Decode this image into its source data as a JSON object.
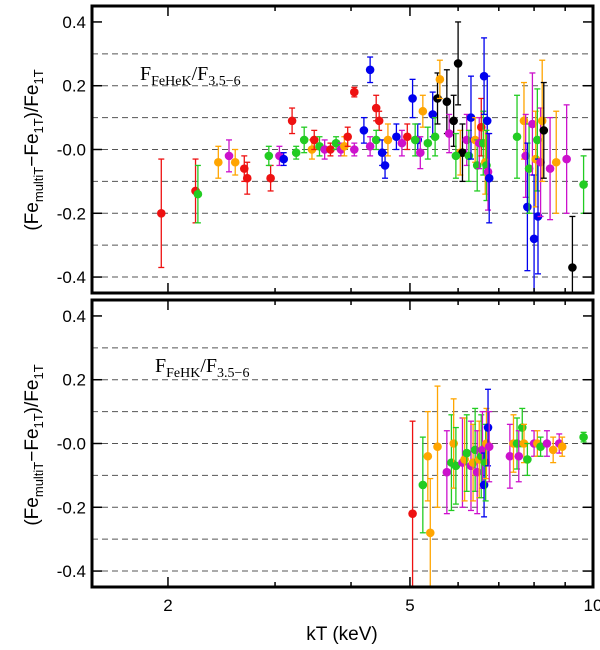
{
  "chart_data": {
    "type": "scatter",
    "xlabel": "kT (keV)",
    "xscale": "log",
    "xlim": [
      1.5,
      10
    ],
    "x_ticks": [
      2,
      5,
      10
    ],
    "x_tick_labels": [
      "2",
      "5",
      "10"
    ],
    "shared_ylabel": {
      "main": "(Fe",
      "sub1": "multiT",
      "mid": "−Fe",
      "sub2": "1T",
      "end": ")/Fe",
      "sub3": "1T"
    },
    "y_ticks": [
      0.4,
      0.2,
      -0.0,
      -0.2,
      -0.4
    ],
    "y_tick_labels": [
      "0.4",
      "0.2",
      "-0.0",
      "-0.2",
      "-0.4"
    ],
    "dashed_grid_y": [
      0.3,
      0.2,
      0.1,
      0.0,
      -0.1,
      -0.2,
      -0.3,
      -0.4
    ],
    "series_colors": {
      "red": "#ee1111",
      "orange": "#ffa500",
      "green": "#22cc22",
      "blue": "#0000ee",
      "magenta": "#cc11cc",
      "black": "#000000"
    },
    "panels": [
      {
        "id": "top",
        "ylim": [
          -0.45,
          0.45
        ],
        "annotation": {
          "main": "F",
          "sub1": "FeHeK",
          "mid": "/F",
          "sub2": "3.5−6"
        },
        "points": [
          {
            "c": "red",
            "x": 1.95,
            "y": -0.2,
            "e": 0.17
          },
          {
            "c": "red",
            "x": 2.22,
            "y": -0.13,
            "e": 0.1
          },
          {
            "c": "green",
            "x": 2.24,
            "y": -0.14,
            "e": 0.09
          },
          {
            "c": "orange",
            "x": 2.42,
            "y": -0.04,
            "e": 0.05
          },
          {
            "c": "magenta",
            "x": 2.52,
            "y": -0.02,
            "e": 0.05
          },
          {
            "c": "orange",
            "x": 2.58,
            "y": -0.04,
            "e": 0.04
          },
          {
            "c": "red",
            "x": 2.67,
            "y": -0.06,
            "e": 0.04
          },
          {
            "c": "red",
            "x": 2.7,
            "y": -0.09,
            "e": 0.05
          },
          {
            "c": "red",
            "x": 2.95,
            "y": -0.09,
            "e": 0.04
          },
          {
            "c": "green",
            "x": 2.93,
            "y": -0.02,
            "e": 0.03
          },
          {
            "c": "magenta",
            "x": 3.05,
            "y": -0.02,
            "e": 0.03
          },
          {
            "c": "blue",
            "x": 3.1,
            "y": -0.03,
            "e": 0.02
          },
          {
            "c": "red",
            "x": 3.2,
            "y": 0.09,
            "e": 0.04
          },
          {
            "c": "green",
            "x": 3.25,
            "y": -0.01,
            "e": 0.02
          },
          {
            "c": "green",
            "x": 3.35,
            "y": 0.03,
            "e": 0.04
          },
          {
            "c": "orange",
            "x": 3.45,
            "y": 0.0,
            "e": 0.03
          },
          {
            "c": "red",
            "x": 3.48,
            "y": 0.03,
            "e": 0.03
          },
          {
            "c": "green",
            "x": 3.55,
            "y": 0.01,
            "e": 0.03
          },
          {
            "c": "magenta",
            "x": 3.62,
            "y": 0.0,
            "e": 0.03
          },
          {
            "c": "red",
            "x": 3.7,
            "y": 0.0,
            "e": 0.02
          },
          {
            "c": "green",
            "x": 3.78,
            "y": 0.02,
            "e": 0.02
          },
          {
            "c": "magenta",
            "x": 3.85,
            "y": 0.0,
            "e": 0.02
          },
          {
            "c": "orange",
            "x": 3.9,
            "y": 0.01,
            "e": 0.03
          },
          {
            "c": "red",
            "x": 3.95,
            "y": 0.04,
            "e": 0.03
          },
          {
            "c": "magenta",
            "x": 4.05,
            "y": 0.0,
            "e": 0.02
          },
          {
            "c": "red",
            "x": 4.05,
            "y": 0.18,
            "e": 0.015
          },
          {
            "c": "blue",
            "x": 4.2,
            "y": 0.06,
            "e": 0.04
          },
          {
            "c": "blue",
            "x": 4.3,
            "y": 0.25,
            "e": 0.04
          },
          {
            "c": "magenta",
            "x": 4.3,
            "y": 0.01,
            "e": 0.03
          },
          {
            "c": "red",
            "x": 4.4,
            "y": 0.13,
            "e": 0.04
          },
          {
            "c": "red",
            "x": 4.45,
            "y": 0.09,
            "e": 0.03
          },
          {
            "c": "green",
            "x": 4.4,
            "y": 0.03,
            "e": 0.03
          },
          {
            "c": "blue",
            "x": 4.5,
            "y": -0.01,
            "e": 0.04
          },
          {
            "c": "blue",
            "x": 4.55,
            "y": -0.05,
            "e": 0.04
          },
          {
            "c": "orange",
            "x": 4.6,
            "y": 0.03,
            "e": 0.05
          },
          {
            "c": "blue",
            "x": 4.75,
            "y": 0.04,
            "e": 0.04
          },
          {
            "c": "magenta",
            "x": 4.85,
            "y": 0.02,
            "e": 0.04
          },
          {
            "c": "red",
            "x": 4.95,
            "y": 0.04,
            "e": 0.04
          },
          {
            "c": "blue",
            "x": 5.05,
            "y": 0.16,
            "e": 0.06
          },
          {
            "c": "blue",
            "x": 5.15,
            "y": 0.03,
            "e": 0.05
          },
          {
            "c": "green",
            "x": 5.1,
            "y": 0.03,
            "e": 0.05
          },
          {
            "c": "magenta",
            "x": 5.2,
            "y": -0.01,
            "e": 0.05
          },
          {
            "c": "orange",
            "x": 5.25,
            "y": 0.12,
            "e": 0.05
          },
          {
            "c": "green",
            "x": 5.35,
            "y": 0.02,
            "e": 0.05
          },
          {
            "c": "blue",
            "x": 5.45,
            "y": 0.11,
            "e": 0.07
          },
          {
            "c": "green",
            "x": 5.5,
            "y": 0.04,
            "e": 0.06
          },
          {
            "c": "black",
            "x": 5.55,
            "y": 0.16,
            "e": 0.08
          },
          {
            "c": "orange",
            "x": 5.6,
            "y": 0.22,
            "e": 0.06
          },
          {
            "c": "black",
            "x": 5.75,
            "y": 0.15,
            "e": 0.1
          },
          {
            "c": "magenta",
            "x": 5.8,
            "y": 0.05,
            "e": 0.06
          },
          {
            "c": "black",
            "x": 5.9,
            "y": 0.09,
            "e": 0.08
          },
          {
            "c": "black",
            "x": 6.0,
            "y": 0.27,
            "e": 0.13
          },
          {
            "c": "orange",
            "x": 6.05,
            "y": -0.01,
            "e": 0.07
          },
          {
            "c": "black",
            "x": 6.1,
            "y": -0.01,
            "e": 0.09
          },
          {
            "c": "green",
            "x": 5.95,
            "y": -0.02,
            "e": 0.07
          },
          {
            "c": "magenta",
            "x": 6.2,
            "y": 0.03,
            "e": 0.08
          },
          {
            "c": "green",
            "x": 6.25,
            "y": -0.02,
            "e": 0.08
          },
          {
            "c": "blue",
            "x": 6.3,
            "y": 0.1,
            "e": 0.13
          },
          {
            "c": "orange",
            "x": 6.4,
            "y": 0.03,
            "e": 0.07
          },
          {
            "c": "green",
            "x": 6.45,
            "y": -0.05,
            "e": 0.08
          },
          {
            "c": "magenta",
            "x": 6.5,
            "y": 0.02,
            "e": 0.08
          },
          {
            "c": "red",
            "x": 6.55,
            "y": 0.07,
            "e": 0.09
          },
          {
            "c": "green",
            "x": 6.6,
            "y": 0.02,
            "e": 0.1
          },
          {
            "c": "blue",
            "x": 6.62,
            "y": 0.23,
            "e": 0.12
          },
          {
            "c": "blue",
            "x": 6.7,
            "y": 0.09,
            "e": 0.14
          },
          {
            "c": "orange",
            "x": 6.65,
            "y": -0.04,
            "e": 0.1
          },
          {
            "c": "green",
            "x": 6.68,
            "y": -0.05,
            "e": 0.11
          },
          {
            "c": "magenta",
            "x": 6.72,
            "y": -0.07,
            "e": 0.12
          },
          {
            "c": "blue",
            "x": 6.75,
            "y": -0.09,
            "e": 0.14
          },
          {
            "c": "green",
            "x": 7.5,
            "y": 0.04,
            "e": 0.13
          },
          {
            "c": "orange",
            "x": 7.7,
            "y": 0.09,
            "e": 0.12
          },
          {
            "c": "magenta",
            "x": 7.75,
            "y": -0.02,
            "e": 0.13
          },
          {
            "c": "blue",
            "x": 7.8,
            "y": -0.18,
            "e": 0.2
          },
          {
            "c": "green",
            "x": 7.85,
            "y": -0.06,
            "e": 0.14
          },
          {
            "c": "magenta",
            "x": 7.95,
            "y": 0.08,
            "e": 0.16
          },
          {
            "c": "blue",
            "x": 8.0,
            "y": -0.28,
            "e": 0.2
          },
          {
            "c": "orange",
            "x": 8.05,
            "y": -0.03,
            "e": 0.15
          },
          {
            "c": "green",
            "x": 8.1,
            "y": 0.03,
            "e": 0.16
          },
          {
            "c": "blue",
            "x": 8.12,
            "y": -0.21,
            "e": 0.18
          },
          {
            "c": "magenta",
            "x": 8.2,
            "y": -0.04,
            "e": 0.17
          },
          {
            "c": "orange",
            "x": 8.25,
            "y": 0.09,
            "e": 0.19
          },
          {
            "c": "black",
            "x": 8.3,
            "y": 0.06,
            "e": 0.15
          },
          {
            "c": "magenta",
            "x": 8.5,
            "y": -0.06,
            "e": 0.16
          },
          {
            "c": "orange",
            "x": 8.7,
            "y": -0.04,
            "e": 0.16
          },
          {
            "c": "magenta",
            "x": 9.05,
            "y": -0.03,
            "e": 0.17
          },
          {
            "c": "black",
            "x": 9.25,
            "y": -0.37,
            "e": 0.16
          },
          {
            "c": "green",
            "x": 9.65,
            "y": -0.11,
            "e": 0.09
          }
        ]
      },
      {
        "id": "bottom",
        "ylim": [
          -0.45,
          0.45
        ],
        "annotation": {
          "main": "F",
          "sub1": "FeHK",
          "mid": "/F",
          "sub2": "3.5−6"
        },
        "points": [
          {
            "c": "red",
            "x": 5.05,
            "y": -0.22,
            "e": 0.29
          },
          {
            "c": "green",
            "x": 5.25,
            "y": -0.13,
            "e": 0.15
          },
          {
            "c": "orange",
            "x": 5.35,
            "y": -0.04,
            "e": 0.14
          },
          {
            "c": "orange",
            "x": 5.4,
            "y": -0.28,
            "e": 0.17
          },
          {
            "c": "orange",
            "x": 5.55,
            "y": -0.01,
            "e": 0.19
          },
          {
            "c": "magenta",
            "x": 5.75,
            "y": -0.09,
            "e": 0.13
          },
          {
            "c": "green",
            "x": 5.85,
            "y": -0.06,
            "e": 0.15
          },
          {
            "c": "orange",
            "x": 5.9,
            "y": 0.0,
            "e": 0.14
          },
          {
            "c": "green",
            "x": 5.95,
            "y": -0.07,
            "e": 0.12
          },
          {
            "c": "magenta",
            "x": 6.1,
            "y": -0.06,
            "e": 0.14
          },
          {
            "c": "orange",
            "x": 6.15,
            "y": -0.05,
            "e": 0.13
          },
          {
            "c": "green",
            "x": 6.2,
            "y": -0.03,
            "e": 0.12
          },
          {
            "c": "magenta",
            "x": 6.3,
            "y": -0.07,
            "e": 0.14
          },
          {
            "c": "orange",
            "x": 6.35,
            "y": -0.06,
            "e": 0.12
          },
          {
            "c": "green",
            "x": 6.4,
            "y": -0.02,
            "e": 0.13
          },
          {
            "c": "magenta",
            "x": 6.45,
            "y": -0.09,
            "e": 0.13
          },
          {
            "c": "orange",
            "x": 6.5,
            "y": -0.05,
            "e": 0.12
          },
          {
            "c": "green",
            "x": 6.55,
            "y": -0.04,
            "e": 0.13
          },
          {
            "c": "magenta",
            "x": 6.58,
            "y": -0.02,
            "e": 0.12
          },
          {
            "c": "blue",
            "x": 6.62,
            "y": -0.13,
            "e": 0.1
          },
          {
            "c": "green",
            "x": 6.66,
            "y": -0.06,
            "e": 0.12
          },
          {
            "c": "orange",
            "x": 6.68,
            "y": 0.0,
            "e": 0.11
          },
          {
            "c": "blue",
            "x": 6.72,
            "y": 0.05,
            "e": 0.12
          },
          {
            "c": "magenta",
            "x": 6.75,
            "y": -0.01,
            "e": 0.11
          },
          {
            "c": "magenta",
            "x": 7.3,
            "y": -0.04,
            "e": 0.1
          },
          {
            "c": "orange",
            "x": 7.4,
            "y": 0.0,
            "e": 0.09
          },
          {
            "c": "green",
            "x": 7.5,
            "y": 0.0,
            "e": 0.08
          },
          {
            "c": "magenta",
            "x": 7.55,
            "y": -0.04,
            "e": 0.08
          },
          {
            "c": "green",
            "x": 7.65,
            "y": 0.05,
            "e": 0.06
          },
          {
            "c": "orange",
            "x": 7.7,
            "y": 0.0,
            "e": 0.06
          },
          {
            "c": "green",
            "x": 7.8,
            "y": -0.05,
            "e": 0.05
          },
          {
            "c": "magenta",
            "x": 8.0,
            "y": 0.0,
            "e": 0.04
          },
          {
            "c": "orange",
            "x": 8.1,
            "y": 0.0,
            "e": 0.04
          },
          {
            "c": "green",
            "x": 8.2,
            "y": -0.01,
            "e": 0.03
          },
          {
            "c": "magenta",
            "x": 8.4,
            "y": 0.0,
            "e": 0.04
          },
          {
            "c": "orange",
            "x": 8.6,
            "y": -0.02,
            "e": 0.04
          },
          {
            "c": "magenta",
            "x": 8.8,
            "y": 0.0,
            "e": 0.03
          },
          {
            "c": "orange",
            "x": 8.9,
            "y": -0.01,
            "e": 0.03
          },
          {
            "c": "green",
            "x": 9.65,
            "y": 0.02,
            "e": 0.015
          }
        ]
      }
    ]
  }
}
